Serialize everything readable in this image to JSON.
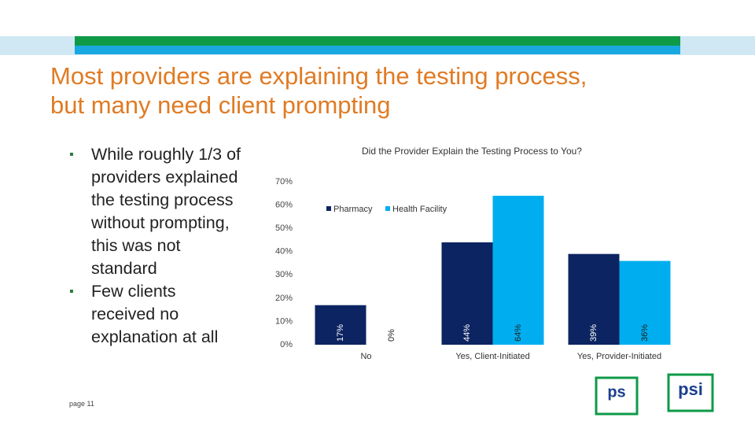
{
  "slide": {
    "title_lines": [
      "Most providers are explaining the testing process,",
      "but many need client prompting"
    ],
    "bullets": [
      "While roughly 1/3 of providers explained the testing process without prompting, this was not standard",
      "Few clients received no explanation at all"
    ],
    "page": "page 11"
  },
  "logos": [
    "ps",
    "psi"
  ],
  "chart_data": {
    "type": "bar",
    "title": "Did the Provider Explain the Testing Process to You?",
    "categories": [
      "No",
      "Yes, Client-Initiated",
      "Yes, Provider-Initiated"
    ],
    "series": [
      {
        "name": "Pharmacy",
        "color": "#0c2461",
        "values": [
          17,
          44,
          39
        ],
        "value_labels": [
          "17%",
          "44%",
          "39%"
        ]
      },
      {
        "name": "Health Facility",
        "color": "#00aeef",
        "values": [
          0,
          64,
          36
        ],
        "value_labels": [
          "0%",
          "64%",
          "36%"
        ]
      }
    ],
    "ylim": [
      0,
      70
    ],
    "yticks": [
      {
        "value": 0,
        "label": "0%"
      },
      {
        "value": 10,
        "label": "10%"
      },
      {
        "value": 20,
        "label": "20%"
      },
      {
        "value": 30,
        "label": "30%"
      },
      {
        "value": 40,
        "label": "40%"
      },
      {
        "value": 50,
        "label": "50%"
      },
      {
        "value": 60,
        "label": "60%"
      },
      {
        "value": 70,
        "label": "70%"
      }
    ],
    "grid": false,
    "legend": "top"
  }
}
